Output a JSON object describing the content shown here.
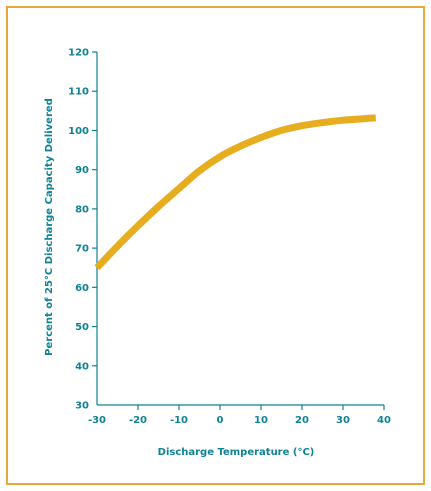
{
  "chart_data": {
    "type": "line",
    "title": "",
    "xlabel": "Discharge Temperature (°C)",
    "ylabel": "Percent of 25°C Discharge Capacity Delivered",
    "xlim": [
      -30,
      40
    ],
    "ylim": [
      30,
      120
    ],
    "xticks": [
      -30,
      -20,
      -10,
      0,
      10,
      20,
      30,
      40
    ],
    "xtick_labels": [
      "-30",
      "-20",
      "-10",
      "0",
      "10",
      "20",
      "30",
      "40"
    ],
    "yticks": [
      30,
      40,
      50,
      60,
      70,
      80,
      90,
      100,
      110,
      120
    ],
    "ytick_labels": [
      "30",
      "40",
      "50",
      "60",
      "70",
      "80",
      "90",
      "100",
      "110",
      "120"
    ],
    "grid": false,
    "series": [
      {
        "color": "#e6ad1e",
        "x": [
          -30,
          -25,
          -20,
          -15,
          -10,
          -5,
          0,
          5,
          10,
          15,
          20,
          25,
          30,
          35,
          38
        ],
        "y": [
          65,
          70.5,
          75.7,
          80.6,
          85.2,
          89.7,
          93.3,
          96.0,
          98.2,
          100.0,
          101.2,
          102.0,
          102.6,
          103.0,
          103.2
        ]
      }
    ]
  }
}
